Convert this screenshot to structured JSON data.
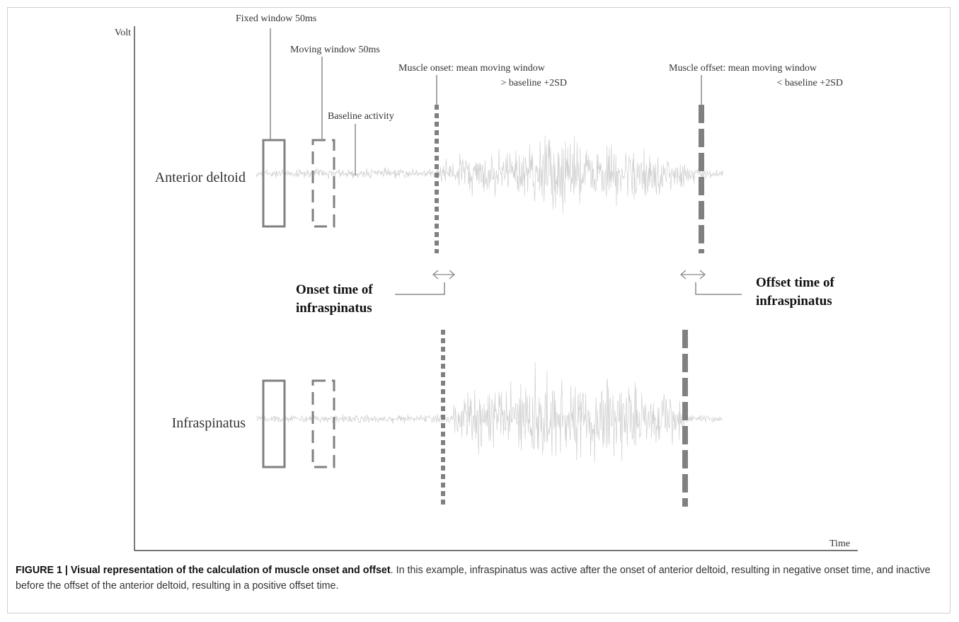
{
  "axes": {
    "y_label": "Volt",
    "x_label": "Time"
  },
  "annotations": {
    "fixed_window": "Fixed window 50ms",
    "moving_window": "Moving window 50ms",
    "baseline": "Baseline activity",
    "onset_rule_line1": "Muscle onset: mean moving window",
    "onset_rule_line2": "> baseline +2SD",
    "offset_rule_line1": "Muscle offset: mean moving window",
    "offset_rule_line2": "< baseline +2SD",
    "onset_time_line1": "Onset time of",
    "onset_time_line2": "infraspinatus",
    "offset_time_line1": "Offset time of",
    "offset_time_line2": "infraspinatus"
  },
  "signals": [
    {
      "name": "Anterior deltoid",
      "color": "#cfcfcf"
    },
    {
      "name": "Infraspinatus",
      "color": "#cfcfcf"
    }
  ],
  "marker_color": "#808080",
  "caption": {
    "label": "FIGURE 1 | Visual representation of the calculation of muscle onset and offset",
    "text": ". In this example, infraspinatus was active after the onset of anterior deltoid, resulting in negative onset time, and inactive before the offset of the anterior deltoid, resulting in a positive offset time."
  }
}
